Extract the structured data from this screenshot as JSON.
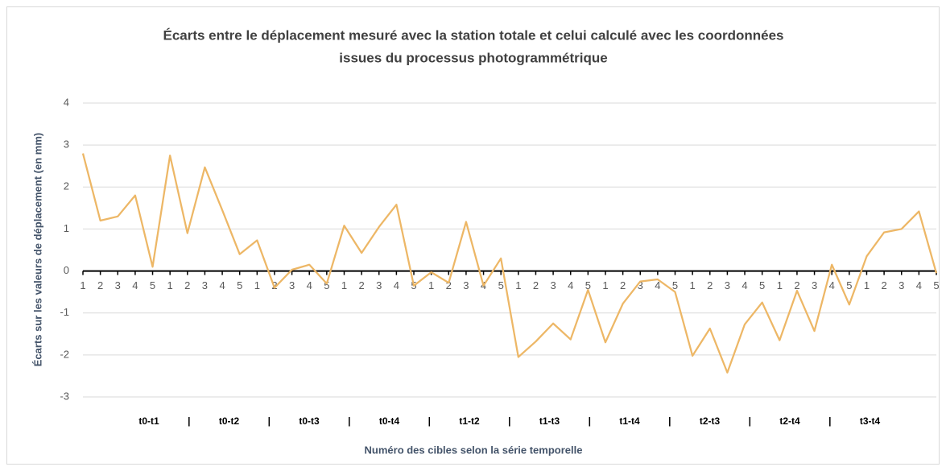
{
  "chart_data": {
    "type": "line",
    "title": [
      "Écarts entre le déplacement mesuré avec la station totale et celui calculé avec les coordonnées",
      "issues du processus photogrammétrique"
    ],
    "x_label": "Numéro des cibles selon la série temporelle",
    "y_label": "Écarts sur les valeurs de déplacement (en mm)",
    "categories": [
      "1",
      "2",
      "3",
      "4",
      "5",
      "1",
      "2",
      "3",
      "4",
      "5",
      "1",
      "2",
      "3",
      "4",
      "5",
      "1",
      "2",
      "3",
      "4",
      "5",
      "1",
      "2",
      "3",
      "4",
      "5",
      "1",
      "2",
      "3",
      "4",
      "5",
      "1",
      "2",
      "3",
      "4",
      "5",
      "1",
      "2",
      "3",
      "4",
      "5",
      "1",
      "2",
      "3",
      "4",
      "5",
      "1",
      "2",
      "3",
      "4",
      "5"
    ],
    "groups": [
      "t0-t1",
      "t0-t2",
      "t0-t3",
      "t0-t4",
      "t1-t2",
      "t1-t3",
      "t1-t4",
      "t2-t3",
      "t2-t4",
      "t3-t4"
    ],
    "group_separator": "|",
    "series": [
      {
        "name": "Écarts",
        "color": "#edb766",
        "values": [
          2.8,
          1.2,
          1.3,
          1.8,
          0.1,
          2.75,
          0.9,
          2.47,
          1.45,
          0.4,
          0.73,
          -0.4,
          0.03,
          0.15,
          -0.3,
          1.08,
          0.43,
          1.05,
          1.58,
          -0.35,
          -0.03,
          -0.28,
          1.17,
          -0.35,
          0.3,
          -2.05,
          -1.68,
          -1.25,
          -1.63,
          -0.45,
          -1.7,
          -0.78,
          -0.25,
          -0.2,
          -0.5,
          -2.02,
          -1.37,
          -2.42,
          -1.27,
          -0.75,
          -1.65,
          -0.47,
          -1.43,
          0.15,
          -0.8,
          0.35,
          0.92,
          1.0,
          1.42,
          -0.05
        ]
      }
    ],
    "ylim": [
      -3,
      4
    ],
    "yticks": [
      -3,
      -2,
      -1,
      0,
      1,
      2,
      3,
      4
    ],
    "grid": true
  }
}
